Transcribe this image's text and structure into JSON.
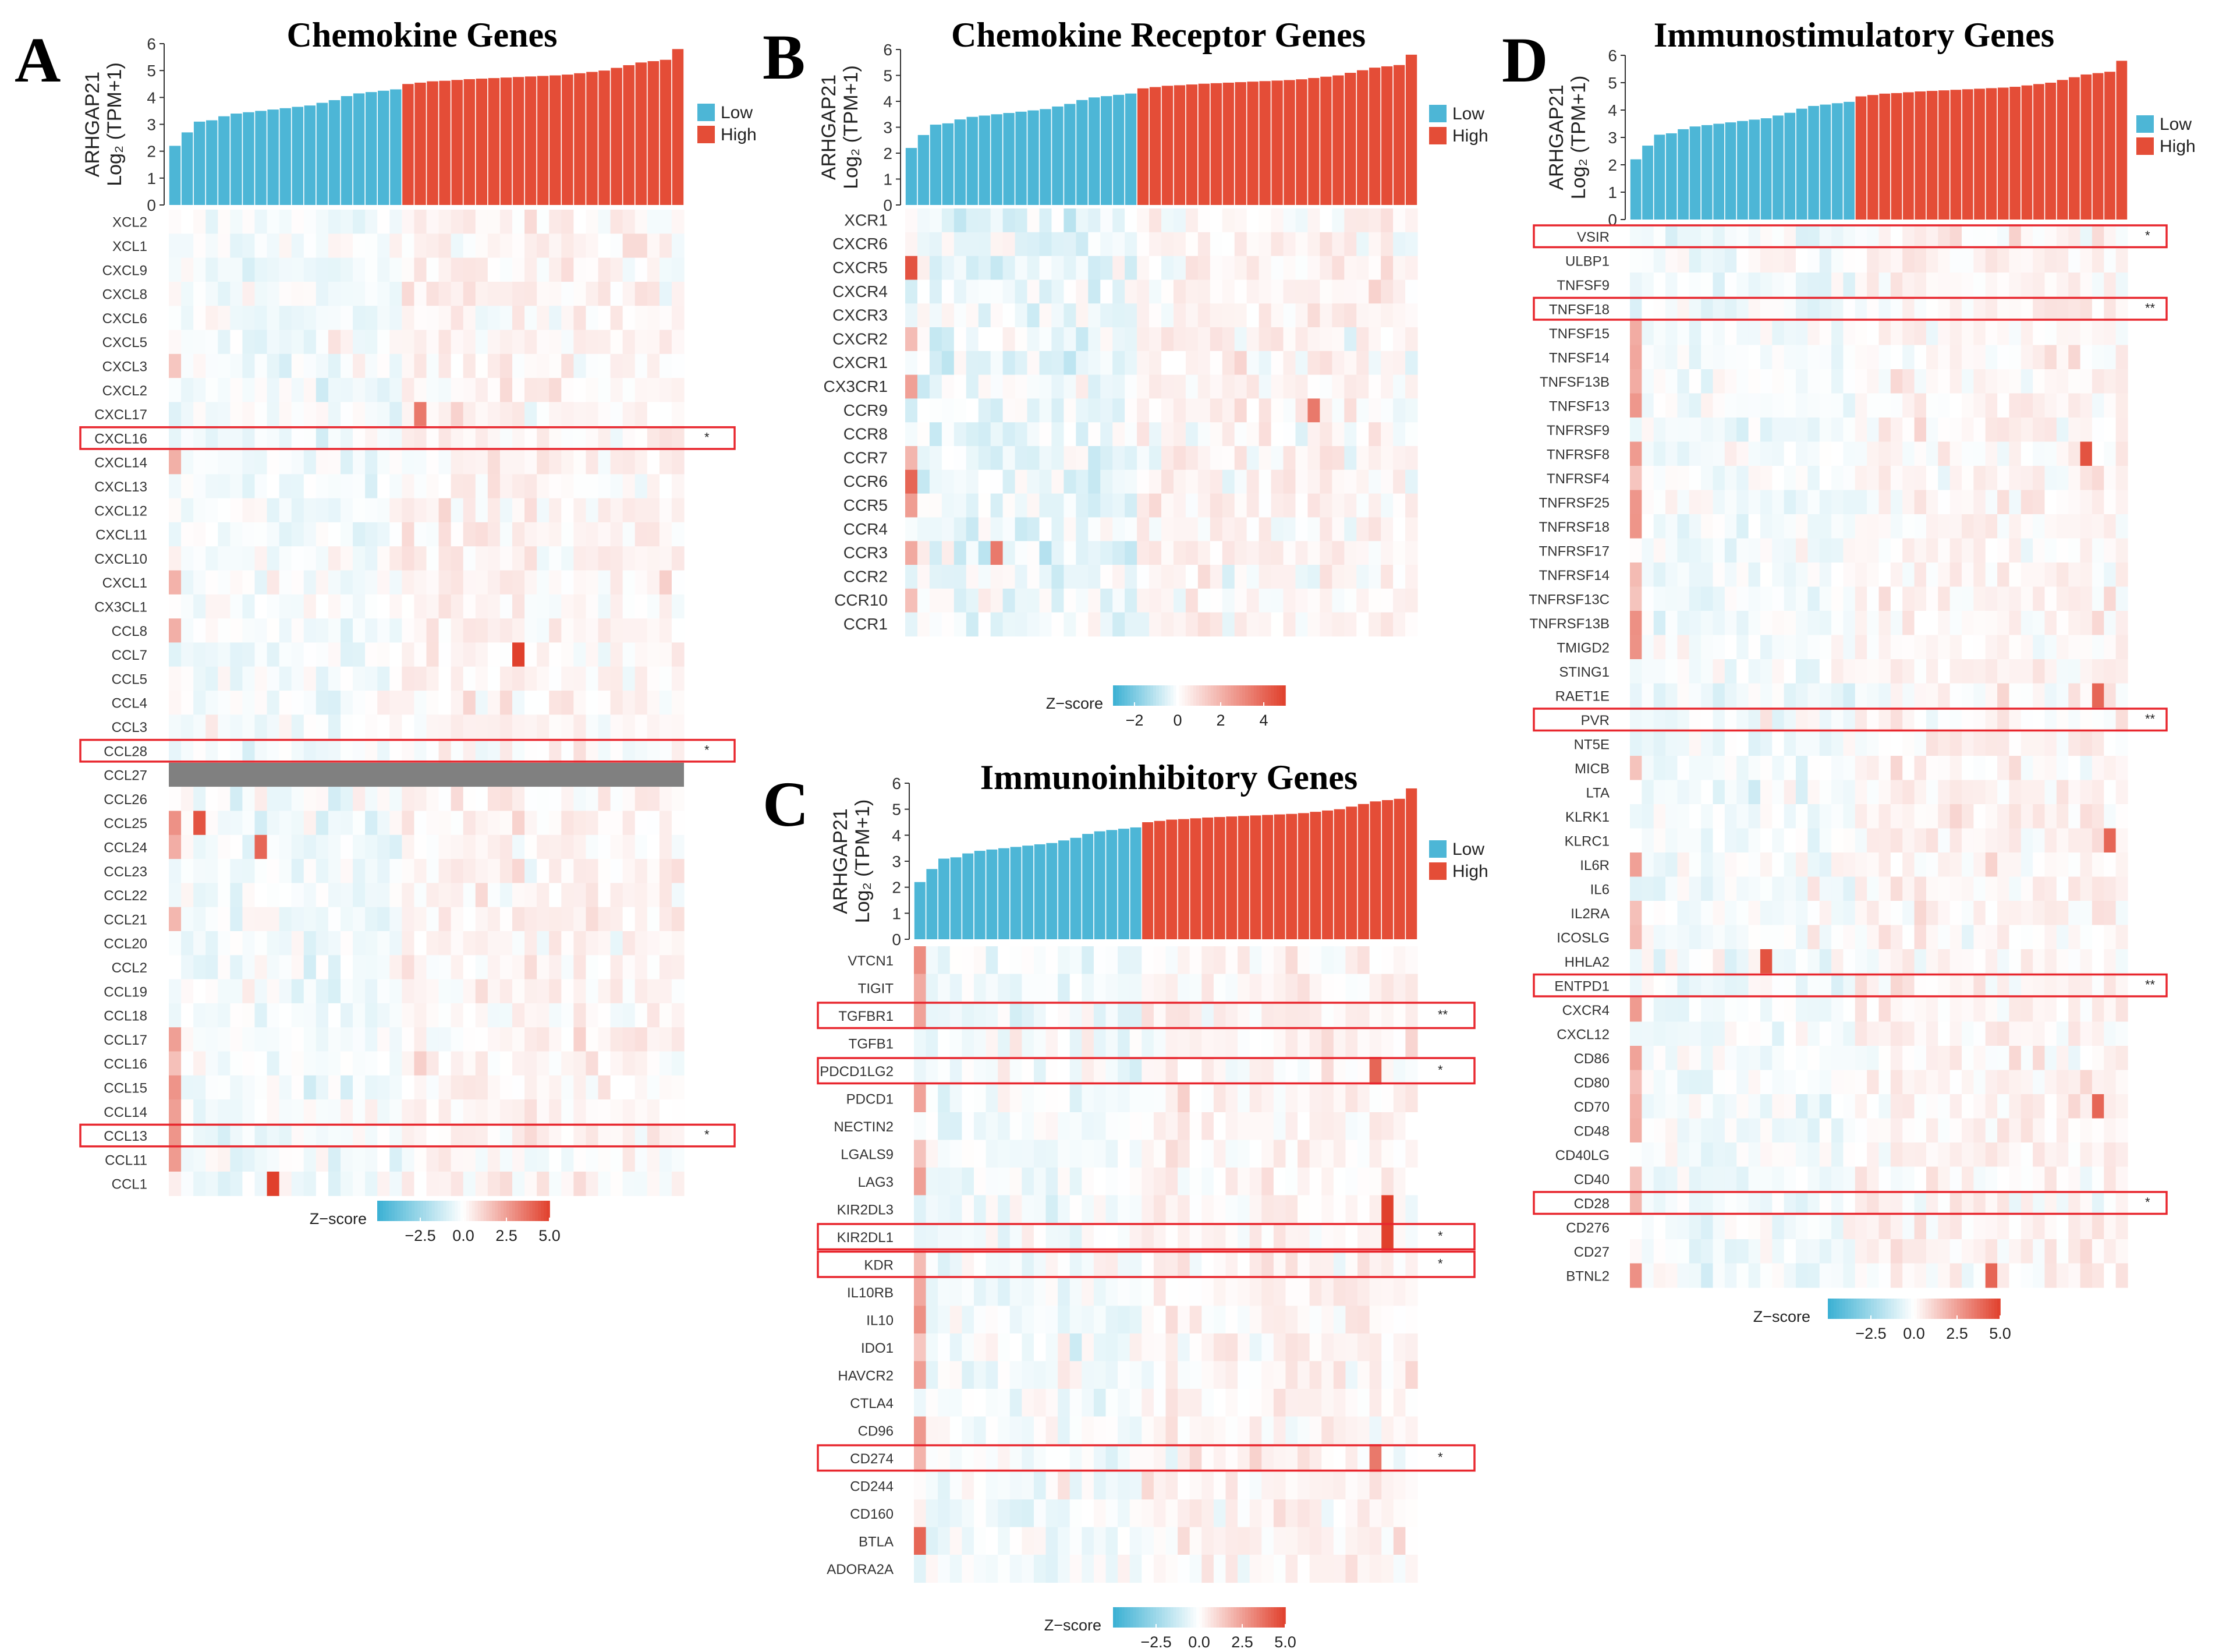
{
  "figure": {
    "legend_low": "Low",
    "legend_high": "High",
    "low_color": "#4db6d6",
    "high_color": "#e44d37",
    "ylabel_line1": "ARHGAP21",
    "ylabel_line2": "Log₂ (TPM+1)",
    "zscore_label": "Z−score",
    "box_color": "#e8272e",
    "na_color": "#808080"
  },
  "chart_data": [
    {
      "id": "A",
      "panel_letter": "A",
      "type": "heatmap",
      "title": "Chemokine Genes",
      "bar_ylim": [
        0,
        6
      ],
      "bar_yticks": [
        "0",
        "1",
        "2",
        "3",
        "4",
        "5",
        "6"
      ],
      "bar_values": [
        2.2,
        2.7,
        3.1,
        3.15,
        3.3,
        3.4,
        3.45,
        3.5,
        3.55,
        3.6,
        3.65,
        3.7,
        3.8,
        3.9,
        4.05,
        4.15,
        4.2,
        4.25,
        4.3,
        4.5,
        4.55,
        4.6,
        4.62,
        4.65,
        4.68,
        4.7,
        4.72,
        4.74,
        4.76,
        4.78,
        4.8,
        4.82,
        4.85,
        4.9,
        4.95,
        5.0,
        5.1,
        5.2,
        5.3,
        5.35,
        5.4,
        5.8
      ],
      "n_low": 19,
      "genes": [
        "XCL2",
        "XCL1",
        "CXCL9",
        "CXCL8",
        "CXCL6",
        "CXCL5",
        "CXCL3",
        "CXCL2",
        "CXCL17",
        "CXCL16",
        "CXCL14",
        "CXCL13",
        "CXCL12",
        "CXCL11",
        "CXCL10",
        "CXCL1",
        "CX3CL1",
        "CCL8",
        "CCL7",
        "CCL5",
        "CCL4",
        "CCL3",
        "CCL28",
        "CCL27",
        "CCL26",
        "CCL25",
        "CCL24",
        "CCL23",
        "CCL22",
        "CCL21",
        "CCL20",
        "CCL2",
        "CCL19",
        "CCL18",
        "CCL17",
        "CCL16",
        "CCL15",
        "CCL14",
        "CCL13",
        "CCL11",
        "CCL1"
      ],
      "significance": {
        "CXCL16": "*",
        "CCL28": "*",
        "CCL13": "*"
      },
      "missing": [
        "CCL27"
      ],
      "z_range": [
        -5,
        5
      ],
      "legend_ticks": [
        "−2.5",
        "0.0",
        "2.5",
        "5.0"
      ],
      "hotspots": [
        {
          "gene": "CCL7",
          "col": 28,
          "z": 5
        },
        {
          "gene": "CCL25",
          "col": 2,
          "z": 4.5
        },
        {
          "gene": "CCL24",
          "col": 7,
          "z": 4
        },
        {
          "gene": "CCL1",
          "col": 8,
          "z": 5
        },
        {
          "gene": "CXCL17",
          "col": 20,
          "z": 3.5
        }
      ]
    },
    {
      "id": "B",
      "panel_letter": "B",
      "type": "heatmap",
      "title": "Chemokine Receptor Genes",
      "bar_ylim": [
        0,
        6
      ],
      "bar_yticks": [
        "0",
        "1",
        "2",
        "3",
        "4",
        "5",
        "6"
      ],
      "bar_values": [
        2.2,
        2.7,
        3.1,
        3.15,
        3.3,
        3.4,
        3.45,
        3.5,
        3.55,
        3.6,
        3.65,
        3.7,
        3.8,
        3.9,
        4.05,
        4.15,
        4.2,
        4.25,
        4.3,
        4.5,
        4.55,
        4.6,
        4.62,
        4.65,
        4.68,
        4.7,
        4.72,
        4.74,
        4.76,
        4.78,
        4.8,
        4.82,
        4.85,
        4.9,
        4.95,
        5.0,
        5.1,
        5.2,
        5.3,
        5.35,
        5.4,
        5.8
      ],
      "n_low": 19,
      "genes": [
        "XCR1",
        "CXCR6",
        "CXCR5",
        "CXCR4",
        "CXCR3",
        "CXCR2",
        "CXCR1",
        "CX3CR1",
        "CCR9",
        "CCR8",
        "CCR7",
        "CCR6",
        "CCR5",
        "CCR4",
        "CCR3",
        "CCR2",
        "CCR10",
        "CCR1"
      ],
      "significance": {},
      "missing": [],
      "z_range": [
        -3,
        5
      ],
      "legend_ticks": [
        "−2",
        "0",
        "2",
        "4"
      ],
      "hotspots": [
        {
          "gene": "CXCR5",
          "col": 0,
          "z": 4.5
        },
        {
          "gene": "CCR6",
          "col": 0,
          "z": 4
        },
        {
          "gene": "CCR9",
          "col": 33,
          "z": 3.5
        },
        {
          "gene": "CCR3",
          "col": 7,
          "z": 3.5
        }
      ]
    },
    {
      "id": "C",
      "panel_letter": "C",
      "type": "heatmap",
      "title": "Immunoinhibitory Genes",
      "bar_ylim": [
        0,
        6
      ],
      "bar_yticks": [
        "0",
        "1",
        "2",
        "3",
        "4",
        "5",
        "6"
      ],
      "bar_values": [
        2.2,
        2.7,
        3.1,
        3.15,
        3.3,
        3.4,
        3.45,
        3.5,
        3.55,
        3.6,
        3.65,
        3.7,
        3.8,
        3.9,
        4.05,
        4.15,
        4.2,
        4.25,
        4.3,
        4.5,
        4.55,
        4.6,
        4.62,
        4.65,
        4.68,
        4.7,
        4.72,
        4.74,
        4.76,
        4.78,
        4.8,
        4.82,
        4.85,
        4.9,
        4.95,
        5.0,
        5.1,
        5.2,
        5.3,
        5.35,
        5.4,
        5.8
      ],
      "n_low": 19,
      "genes": [
        "VTCN1",
        "TIGIT",
        "TGFBR1",
        "TGFB1",
        "PDCD1LG2",
        "PDCD1",
        "NECTIN2",
        "LGALS9",
        "LAG3",
        "KIR2DL3",
        "KIR2DL1",
        "KDR",
        "IL10RB",
        "IL10",
        "IDO1",
        "HAVCR2",
        "CTLA4",
        "CD96",
        "CD274",
        "CD244",
        "CD160",
        "BTLA",
        "ADORA2A"
      ],
      "significance": {
        "TGFBR1": "**",
        "PDCD1LG2": "*",
        "KIR2DL1": "*",
        "KDR": "*",
        "CD274": "*"
      },
      "missing": [],
      "z_range": [
        -5,
        5
      ],
      "legend_ticks": [
        "−2.5",
        "0.0",
        "2.5",
        "5.0"
      ],
      "hotspots": [
        {
          "gene": "KIR2DL3",
          "col": 39,
          "z": 5
        },
        {
          "gene": "KIR2DL1",
          "col": 39,
          "z": 5
        },
        {
          "gene": "PDCD1LG2",
          "col": 38,
          "z": 4
        },
        {
          "gene": "CD274",
          "col": 38,
          "z": 3.5
        },
        {
          "gene": "BTLA",
          "col": 0,
          "z": 4
        }
      ]
    },
    {
      "id": "D",
      "panel_letter": "D",
      "type": "heatmap",
      "title": "Immunostimulatory Genes",
      "bar_ylim": [
        0,
        6
      ],
      "bar_yticks": [
        "0",
        "1",
        "2",
        "3",
        "4",
        "5",
        "6"
      ],
      "bar_values": [
        2.2,
        2.7,
        3.1,
        3.15,
        3.3,
        3.4,
        3.45,
        3.5,
        3.55,
        3.6,
        3.65,
        3.7,
        3.8,
        3.9,
        4.05,
        4.15,
        4.2,
        4.25,
        4.3,
        4.5,
        4.55,
        4.6,
        4.62,
        4.65,
        4.68,
        4.7,
        4.72,
        4.74,
        4.76,
        4.78,
        4.8,
        4.82,
        4.85,
        4.9,
        4.95,
        5.0,
        5.1,
        5.2,
        5.3,
        5.35,
        5.4,
        5.8
      ],
      "n_low": 19,
      "genes": [
        "VSIR",
        "ULBP1",
        "TNFSF9",
        "TNFSF18",
        "TNFSF15",
        "TNFSF14",
        "TNFSF13B",
        "TNFSF13",
        "TNFRSF9",
        "TNFRSF8",
        "TNFRSF4",
        "TNFRSF25",
        "TNFRSF18",
        "TNFRSF17",
        "TNFRSF14",
        "TNFRSF13C",
        "TNFRSF13B",
        "TMIGD2",
        "STING1",
        "RAET1E",
        "PVR",
        "NT5E",
        "MICB",
        "LTA",
        "KLRK1",
        "KLRC1",
        "IL6R",
        "IL6",
        "IL2RA",
        "ICOSLG",
        "HHLA2",
        "ENTPD1",
        "CXCR4",
        "CXCL12",
        "CD86",
        "CD80",
        "CD70",
        "CD48",
        "CD40LG",
        "CD40",
        "CD28",
        "CD276",
        "CD27",
        "BTNL2"
      ],
      "significance": {
        "VSIR": "*",
        "TNFSF18": "**",
        "PVR": "**",
        "ENTPD1": "**",
        "CD28": "*"
      },
      "missing": [],
      "z_range": [
        -5,
        5
      ],
      "legend_ticks": [
        "−2.5",
        "0.0",
        "2.5",
        "5.0"
      ],
      "hotspots": [
        {
          "gene": "TNFRSF8",
          "col": 38,
          "z": 4.5
        },
        {
          "gene": "HHLA2",
          "col": 11,
          "z": 4.5
        },
        {
          "gene": "BTNL2",
          "col": 30,
          "z": 4
        },
        {
          "gene": "KLRC1",
          "col": 40,
          "z": 4
        },
        {
          "gene": "RAET1E",
          "col": 39,
          "z": 4
        },
        {
          "gene": "CD70",
          "col": 39,
          "z": 4
        }
      ]
    }
  ]
}
